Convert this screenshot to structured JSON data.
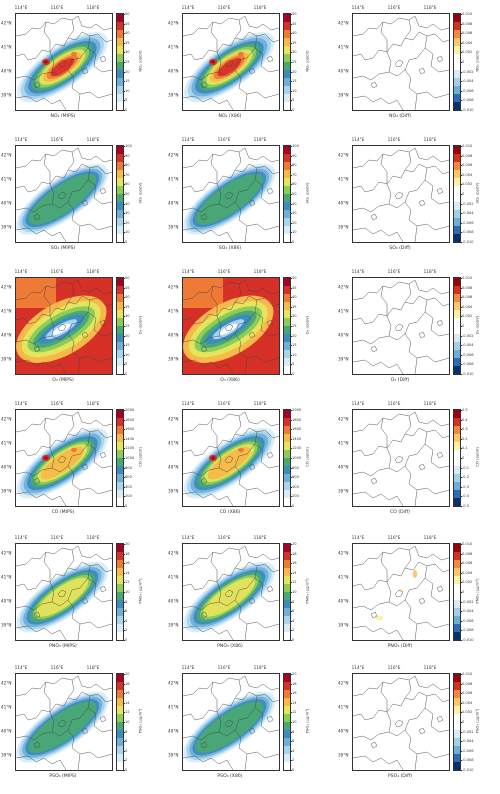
{
  "figure": {
    "lon_labels": [
      "114°E",
      "116°E",
      "118°E"
    ],
    "lat_labels": [
      "42°N",
      "41°N",
      "40°N",
      "39°N"
    ],
    "rows": [
      {
        "species": "NO2",
        "unit_label": "NO₂ (ppbV)",
        "main_ticks": [
          "50",
          "45",
          "40",
          "35",
          "30",
          "25",
          "20",
          "15",
          "10",
          "5",
          "0"
        ],
        "diff_unit_label": "NO₂ (ppbV)",
        "diff_ticks": [
          "0.010",
          "0.008",
          "0.006",
          "0.004",
          "0.002",
          "0",
          "-0.002",
          "-0.004",
          "-0.006",
          "-0.008",
          "-0.010"
        ],
        "captions": [
          "NO₂ (MIPS)",
          "NO₂ (X86)",
          "NO₂ (Diff)"
        ],
        "intensity": 1.0,
        "diff_blobs": []
      },
      {
        "species": "SO2",
        "unit_label": "SO₂ (ppbV)",
        "main_ticks": [
          "100",
          "90",
          "80",
          "70",
          "60",
          "50",
          "40",
          "30",
          "20",
          "10",
          "0"
        ],
        "diff_unit_label": "SO₂ (ppbV)",
        "diff_ticks": [
          "0.010",
          "0.008",
          "0.006",
          "0.004",
          "0.002",
          "0",
          "-0.002",
          "-0.004",
          "-0.006",
          "-0.008",
          "-0.010"
        ],
        "captions": [
          "SO₂ (MIPS)",
          "SO₂ (X86)",
          "SO₂ (Diff)"
        ],
        "intensity": 0.55,
        "diff_blobs": []
      },
      {
        "species": "O3",
        "unit_label": "O₃ (ppbV)",
        "main_ticks": [
          "50",
          "45",
          "40",
          "35",
          "30",
          "25",
          "20",
          "15",
          "10",
          "5",
          "0"
        ],
        "diff_unit_label": "O₃ (ppbV)",
        "diff_ticks": [
          "0.010",
          "0.008",
          "0.006",
          "0.004",
          "0.002",
          "0",
          "-0.002",
          "-0.004",
          "-0.006",
          "-0.008",
          "-0.010"
        ],
        "captions": [
          "O₃ (MIPS)",
          "O₃ (X86)",
          "O₃ (Diff)"
        ],
        "intensity": 0.0,
        "diff_blobs": []
      },
      {
        "species": "CO",
        "unit_label": "CO (ppbV)",
        "main_ticks": [
          "2000",
          "1800",
          "1600",
          "1400",
          "1200",
          "1000",
          "800",
          "600",
          "400",
          "200",
          "0"
        ],
        "diff_unit_label": "CO (ppbV)",
        "diff_ticks": [
          "0.5",
          "0.4",
          "0.3",
          "0.2",
          "0.1",
          "0",
          "-0.1",
          "-0.2",
          "-0.3",
          "-0.4",
          "-0.5"
        ],
        "captions": [
          "CO (MIPS)",
          "CO (X86)",
          "CO (Diff)"
        ],
        "intensity": 0.8,
        "diff_blobs": []
      },
      {
        "species": "PNO3",
        "unit_label": "PNO₃ (μg/m³)",
        "main_ticks": [
          "20",
          "18",
          "16",
          "14",
          "12",
          "10",
          "8",
          "6",
          "4",
          "2",
          "0"
        ],
        "diff_unit_label": "PNO₃ (μg/m³)",
        "diff_ticks": [
          "0.010",
          "0.008",
          "0.006",
          "0.004",
          "0.002",
          "0",
          "-0.002",
          "-0.004",
          "-0.006",
          "-0.008",
          "-0.010"
        ],
        "captions": [
          "PNO₃ (MIPS)",
          "PNO₃ (X86)",
          "PNO₃ (Diff)"
        ],
        "intensity": 0.7,
        "diff_blobs": [
          1,
          2
        ]
      },
      {
        "species": "PSO4",
        "unit_label": "PSO₄ (μg/m³)",
        "main_ticks": [
          "20",
          "18",
          "16",
          "14",
          "12",
          "10",
          "8",
          "6",
          "4",
          "2",
          "0"
        ],
        "diff_unit_label": "PSO₄ (μg/m³)",
        "diff_ticks": [
          "0.010",
          "0.008",
          "0.006",
          "0.004",
          "0.002",
          "0",
          "-0.002",
          "-0.004",
          "-0.006",
          "-0.008",
          "-0.010"
        ],
        "captions": [
          "PSO₄ (MIPS)",
          "PSO₄ (X86)",
          "PSO₄ (Diff)"
        ],
        "intensity": 0.5,
        "diff_blobs": []
      }
    ],
    "main_colors": [
      "#ffffff",
      "#d8ecf8",
      "#a9d4ee",
      "#6fb0d9",
      "#3d8cc0",
      "#4aa872",
      "#8ccd5a",
      "#e6e35c",
      "#f6b94a",
      "#ee7a35",
      "#d73027",
      "#a50026"
    ],
    "diff_colors": [
      "#08306b",
      "#2c6db2",
      "#6baed6",
      "#a6cfe6",
      "#d7ebf5",
      "#ffffff",
      "#ffffff",
      "#fff0a8",
      "#fdc76a",
      "#f6893d",
      "#d7301f",
      "#99000d"
    ]
  }
}
